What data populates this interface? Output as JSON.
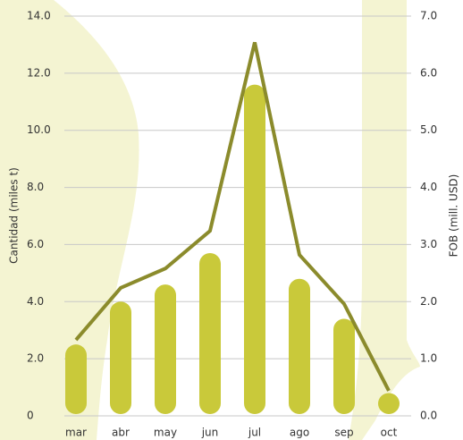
{
  "chart_data": {
    "type": "bar_line",
    "categories": [
      "mar",
      "abr",
      "may",
      "jun",
      "jul",
      "ago",
      "sep",
      "oct"
    ],
    "series": [
      {
        "name": "Cantidad",
        "type": "bar",
        "color": "#c9c93a",
        "values": [
          2.5,
          4.0,
          4.6,
          5.7,
          11.6,
          4.8,
          3.4,
          0.8
        ]
      },
      {
        "name": "FOB",
        "type": "line",
        "axis": "y2",
        "color": "#8b8b2c",
        "values": [
          1.33,
          2.24,
          2.58,
          3.24,
          6.54,
          2.82,
          1.96,
          0.44
        ]
      }
    ],
    "ylabel": "Cantidad (miles t)",
    "y2label": "FOB (mill. USD)",
    "ylim": [
      0,
      14
    ],
    "yticks": [
      0,
      {
        "value": 2,
        "label": "2.0"
      },
      {
        "value": 4,
        "label": "4.0"
      },
      {
        "value": 6,
        "label": "6.0"
      },
      {
        "value": 8,
        "label": "8.0"
      },
      {
        "value": 10,
        "label": "10.0"
      },
      {
        "value": 12,
        "label": "12.0"
      },
      {
        "value": 14,
        "label": "14.0"
      }
    ],
    "y2lim": [
      0,
      7
    ],
    "y2ticks": [
      {
        "value": 0,
        "label": "0.0"
      },
      {
        "value": 1,
        "label": "1.0"
      },
      {
        "value": 2,
        "label": "2.0"
      },
      {
        "value": 3,
        "label": "3.0"
      },
      {
        "value": 4,
        "label": "4.0"
      },
      {
        "value": 5,
        "label": "5.0"
      },
      {
        "value": 6,
        "label": "6.0"
      },
      {
        "value": 7,
        "label": "7.0"
      }
    ],
    "grid": true
  }
}
